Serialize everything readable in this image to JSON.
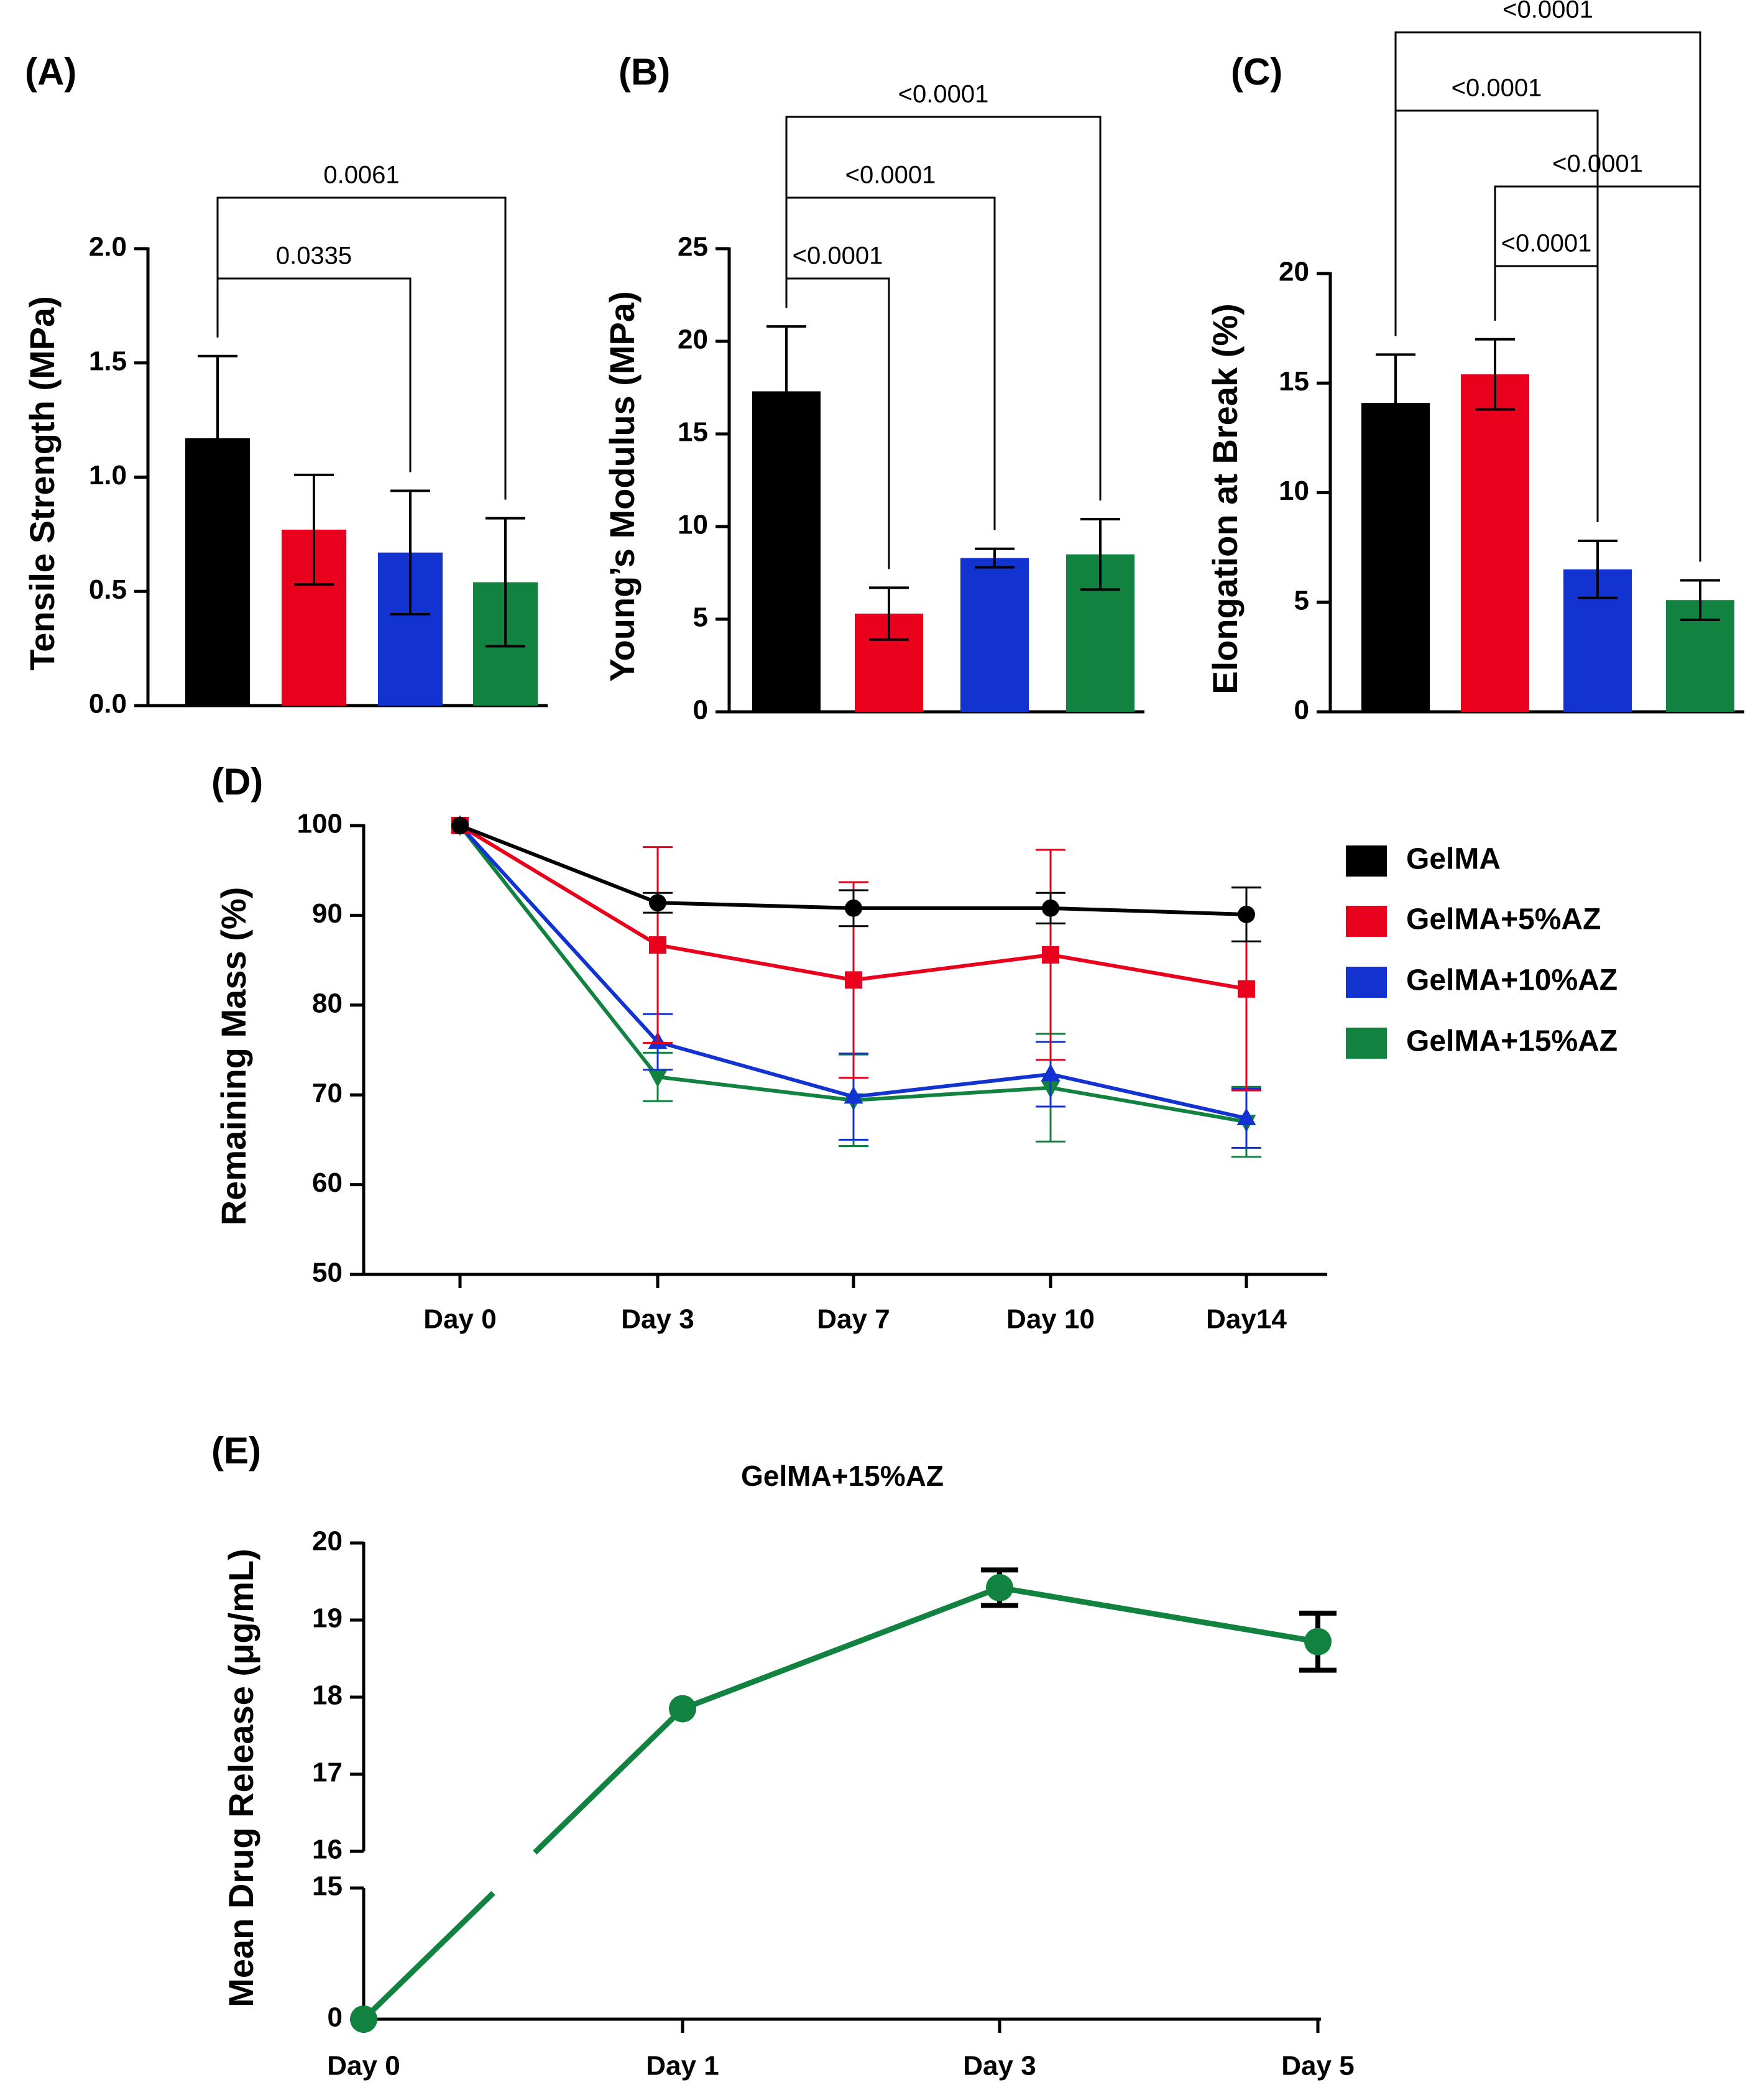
{
  "colors": {
    "gelma": "#000000",
    "az5": "#e8001d",
    "az10": "#1233d0",
    "az15": "#128240",
    "ink": "#000000"
  },
  "chart_data": [
    {
      "id": "A",
      "type": "bar",
      "panel_label": "(A)",
      "ylabel": "Tensile Strength (MPa)",
      "ylim": [
        0,
        2.0
      ],
      "yticks": [
        "0.0",
        "0.5",
        "1.0",
        "1.5",
        "2.0"
      ],
      "series": [
        {
          "name": "GelMA",
          "value": 1.17,
          "error": 0.36,
          "color": "#000000"
        },
        {
          "name": "GelMA+5%AZ",
          "value": 0.77,
          "error": 0.24,
          "color": "#e8001d"
        },
        {
          "name": "GelMA+10%AZ",
          "value": 0.67,
          "error": 0.27,
          "color": "#1233d0"
        },
        {
          "name": "GelMA+15%AZ",
          "value": 0.54,
          "error": 0.28,
          "color": "#128240"
        }
      ],
      "comparisons": [
        {
          "from": 0,
          "to": 2,
          "label": "0.0335"
        },
        {
          "from": 0,
          "to": 3,
          "label": "0.0061"
        }
      ]
    },
    {
      "id": "B",
      "type": "bar",
      "panel_label": "(B)",
      "ylabel": "Young’s Modulus (MPa)",
      "ylim": [
        0,
        25
      ],
      "yticks": [
        "0",
        "5",
        "10",
        "15",
        "20",
        "25"
      ],
      "series": [
        {
          "name": "GelMA",
          "value": 17.3,
          "error": 3.5,
          "color": "#000000"
        },
        {
          "name": "GelMA+5%AZ",
          "value": 5.3,
          "error": 1.4,
          "color": "#e8001d"
        },
        {
          "name": "GelMA+10%AZ",
          "value": 8.3,
          "error": 0.5,
          "color": "#1233d0"
        },
        {
          "name": "GelMA+15%AZ",
          "value": 8.5,
          "error": 1.9,
          "color": "#128240"
        }
      ],
      "comparisons": [
        {
          "from": 0,
          "to": 1,
          "label": "<0.0001"
        },
        {
          "from": 0,
          "to": 2,
          "label": "<0.0001"
        },
        {
          "from": 0,
          "to": 3,
          "label": "<0.0001"
        }
      ]
    },
    {
      "id": "C",
      "type": "bar",
      "panel_label": "(C)",
      "ylabel": "Elongation at Break (%)",
      "ylim": [
        0,
        20
      ],
      "yticks": [
        "0",
        "5",
        "10",
        "15",
        "20"
      ],
      "series": [
        {
          "name": "GelMA",
          "value": 14.1,
          "error": 2.2,
          "color": "#000000"
        },
        {
          "name": "GelMA+5%AZ",
          "value": 15.4,
          "error": 1.6,
          "color": "#e8001d"
        },
        {
          "name": "GelMA+10%AZ",
          "value": 6.5,
          "error": 1.3,
          "color": "#1233d0"
        },
        {
          "name": "GelMA+15%AZ",
          "value": 5.1,
          "error": 0.9,
          "color": "#128240"
        }
      ],
      "comparisons": [
        {
          "from": 1,
          "to": 2,
          "label": "<0.0001"
        },
        {
          "from": 1,
          "to": 3,
          "label": "<0.0001"
        },
        {
          "from": 0,
          "to": 2,
          "label": "<0.0001"
        },
        {
          "from": 0,
          "to": 3,
          "label": "<0.0001"
        }
      ]
    },
    {
      "id": "D",
      "type": "line",
      "panel_label": "(D)",
      "ylabel": "Remaining Mass (%)",
      "ylim": [
        50,
        100
      ],
      "yticks": [
        "50",
        "60",
        "70",
        "80",
        "90",
        "100"
      ],
      "categories": [
        "Day 0",
        "Day 3",
        "Day 7",
        "Day 10",
        "Day14"
      ],
      "legend_position": "right",
      "series": [
        {
          "name": "GelMA",
          "marker": "circle",
          "color": "#000000",
          "values": [
            100,
            91.4,
            90.8,
            90.8,
            90.1
          ],
          "errors": [
            0,
            1.1,
            2.0,
            1.7,
            3.0
          ]
        },
        {
          "name": "GelMA+5%AZ",
          "marker": "square",
          "color": "#e8001d",
          "values": [
            100,
            86.7,
            82.8,
            85.6,
            81.8
          ],
          "errors": [
            0,
            10.9,
            10.9,
            11.7,
            11.3
          ]
        },
        {
          "name": "GelMA+10%AZ",
          "marker": "triangle-up",
          "color": "#1233d0",
          "values": [
            100,
            75.9,
            69.8,
            72.3,
            67.4
          ],
          "errors": [
            0,
            3.1,
            4.8,
            3.6,
            3.3
          ]
        },
        {
          "name": "GelMA+15%AZ",
          "marker": "triangle-down",
          "color": "#128240",
          "values": [
            100,
            72.0,
            69.4,
            70.8,
            67.0
          ],
          "errors": [
            0,
            2.7,
            5.1,
            6.0,
            3.9
          ]
        }
      ]
    },
    {
      "id": "E",
      "type": "line",
      "panel_label": "(E)",
      "title": "GelMA+15%AZ",
      "ylabel": "Mean Drug Release (μg/mL)",
      "categories": [
        "Day 0",
        "Day 1",
        "Day 3",
        "Day 5"
      ],
      "broken_axis": {
        "lower": [
          0,
          15
        ],
        "upper": [
          16,
          20
        ]
      },
      "yticks_lower": [
        "0",
        "15"
      ],
      "yticks_upper": [
        "16",
        "17",
        "18",
        "19",
        "20"
      ],
      "series": [
        {
          "name": "GelMA+15%AZ",
          "marker": "circle",
          "color": "#128240",
          "values": [
            0,
            17.85,
            19.42,
            18.72
          ],
          "errors": [
            0,
            0.0,
            0.23,
            0.37
          ]
        }
      ]
    }
  ]
}
